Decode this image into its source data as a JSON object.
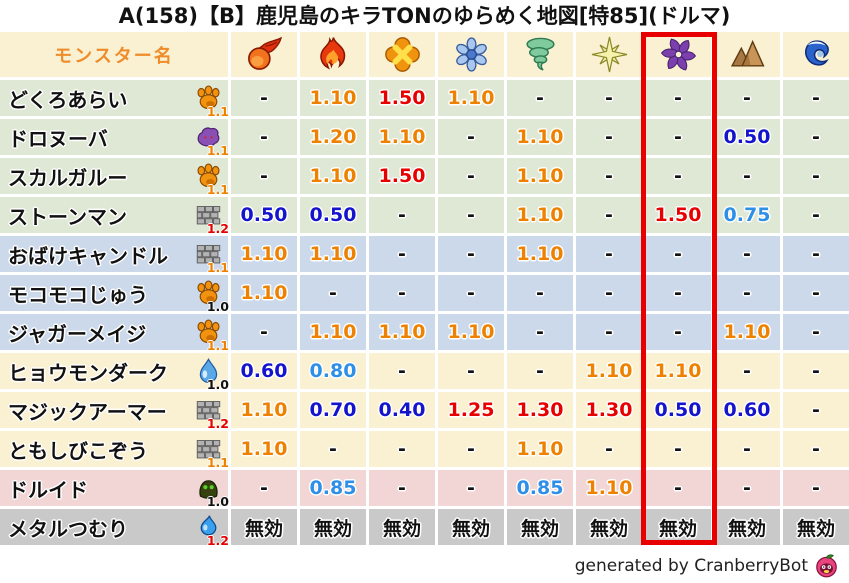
{
  "title": "A(158)【B】鹿児島のキラTONのゆらめく地図[特85](ドルマ)",
  "credit": "generated by CranberryBot",
  "chart_data": {
    "type": "table",
    "name_column_header": "モンスター名",
    "element_columns": [
      {
        "icon": "fireball-icon",
        "highlighted": false
      },
      {
        "icon": "flame-icon",
        "highlighted": false
      },
      {
        "icon": "explosion-icon",
        "highlighted": false
      },
      {
        "icon": "snowflake-icon",
        "highlighted": false
      },
      {
        "icon": "tornado-icon",
        "highlighted": false
      },
      {
        "icon": "star-icon",
        "highlighted": false
      },
      {
        "icon": "dark-pinwheel-icon",
        "highlighted": true
      },
      {
        "icon": "mountain-icon",
        "highlighted": false
      },
      {
        "icon": "wave-icon",
        "highlighted": false
      }
    ],
    "highlighted_column_index": 6,
    "immune_label": "無効",
    "none_label": "-",
    "rows": [
      {
        "name": "どくろあらい",
        "family_icon": "paw-icon",
        "multiplier": "1.1",
        "group": "green",
        "values": [
          "-",
          "1.10",
          "1.50",
          "1.10",
          "-",
          "-",
          "-",
          "-",
          "-"
        ]
      },
      {
        "name": "ドロヌーバ",
        "family_icon": "blob-icon",
        "multiplier": "1.1",
        "group": "green",
        "values": [
          "-",
          "1.20",
          "1.10",
          "-",
          "1.10",
          "-",
          "-",
          "0.50",
          "-"
        ]
      },
      {
        "name": "スカルガルー",
        "family_icon": "paw-icon",
        "multiplier": "1.1",
        "group": "green",
        "values": [
          "-",
          "1.10",
          "1.50",
          "-",
          "1.10",
          "-",
          "-",
          "-",
          "-"
        ]
      },
      {
        "name": "ストーンマン",
        "family_icon": "brick-icon",
        "multiplier": "1.2",
        "group": "green",
        "values": [
          "0.50",
          "0.50",
          "-",
          "-",
          "1.10",
          "-",
          "1.50",
          "0.75",
          "-"
        ]
      },
      {
        "name": "おばけキャンドル",
        "family_icon": "brick-icon",
        "multiplier": "1.1",
        "group": "blue",
        "values": [
          "1.10",
          "1.10",
          "-",
          "-",
          "1.10",
          "-",
          "-",
          "-",
          "-"
        ]
      },
      {
        "name": "モコモコじゅう",
        "family_icon": "paw-icon",
        "multiplier": "1.0",
        "group": "blue",
        "values": [
          "1.10",
          "-",
          "-",
          "-",
          "-",
          "-",
          "-",
          "-",
          "-"
        ]
      },
      {
        "name": "ジャガーメイジ",
        "family_icon": "paw-icon",
        "multiplier": "1.1",
        "group": "blue",
        "values": [
          "-",
          "1.10",
          "1.10",
          "1.10",
          "-",
          "-",
          "-",
          "1.10",
          "-"
        ]
      },
      {
        "name": "ヒョウモンダーク",
        "family_icon": "drop-icon",
        "multiplier": "1.0",
        "group": "cream",
        "values": [
          "0.60",
          "0.80",
          "-",
          "-",
          "-",
          "1.10",
          "1.10",
          "-",
          "-"
        ]
      },
      {
        "name": "マジックアーマー",
        "family_icon": "brick-icon",
        "multiplier": "1.2",
        "group": "cream",
        "values": [
          "1.10",
          "0.70",
          "0.40",
          "1.25",
          "1.30",
          "1.30",
          "0.50",
          "0.60",
          "-"
        ]
      },
      {
        "name": "ともしびこぞう",
        "family_icon": "brick-icon",
        "multiplier": "1.1",
        "group": "cream",
        "values": [
          "1.10",
          "-",
          "-",
          "-",
          "1.10",
          "-",
          "-",
          "-",
          "-"
        ]
      },
      {
        "name": "ドルイド",
        "family_icon": "hood-icon",
        "multiplier": "1.0",
        "group": "pink",
        "values": [
          "-",
          "0.85",
          "-",
          "-",
          "0.85",
          "1.10",
          "-",
          "-",
          "-"
        ]
      },
      {
        "name": "メタルつむり",
        "family_icon": "slime-icon",
        "multiplier": "1.2",
        "group": "gray",
        "values": [
          "無効",
          "無効",
          "無効",
          "無効",
          "無効",
          "無効",
          "無効",
          "無効",
          "無効"
        ]
      }
    ]
  },
  "colors": {
    "header_bg": "#faf0d2",
    "header_text": "#ee8c2a",
    "row_green": "#dfe8d4",
    "row_blue": "#ccd9eb",
    "row_cream": "#faf0d2",
    "row_pink": "#f2d6d6",
    "row_gray": "#c9c9c9",
    "value_orange": "#ee8200",
    "value_red": "#e60000",
    "value_blue_dark": "#1414cc",
    "value_blue_light": "#2e8fe8",
    "value_black": "#111111",
    "highlight_box": "#e80000",
    "mult_10": "#111111",
    "mult_11": "#ee8200",
    "mult_12": "#e60000"
  }
}
